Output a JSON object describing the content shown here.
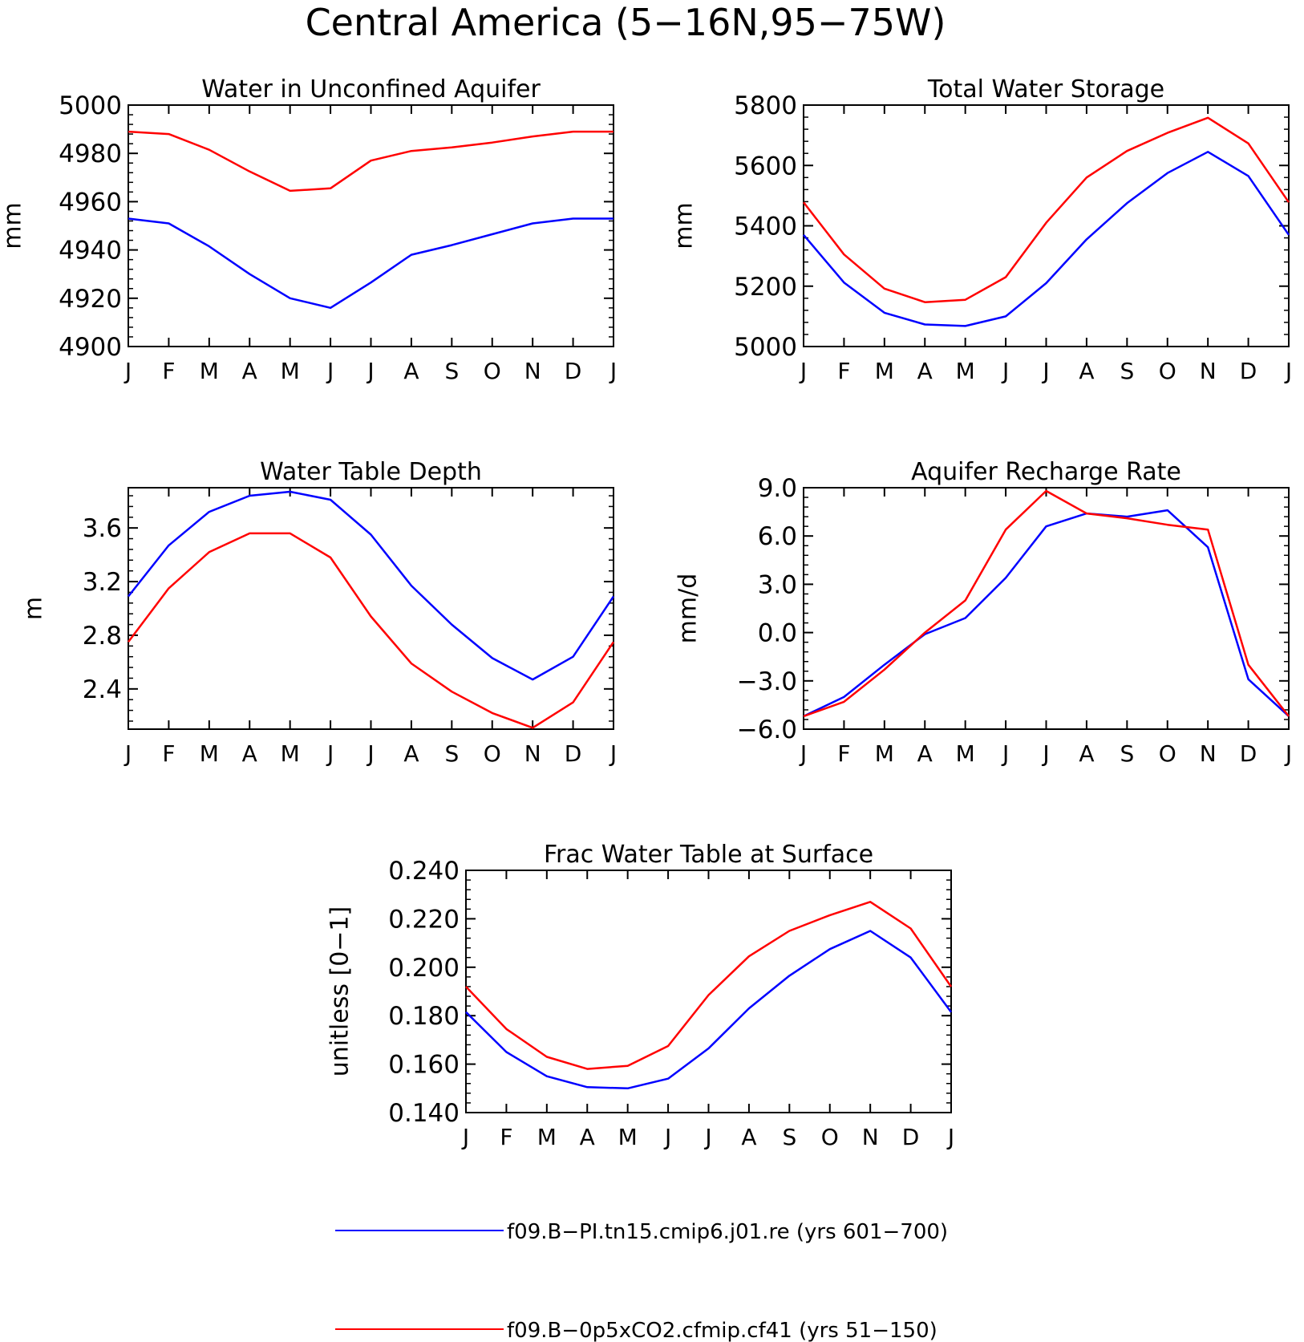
{
  "figure_title": "Central America (5−16N,95−75W)",
  "chart_data": [
    {
      "type": "line",
      "title": "Water in Unconfined Aquifer",
      "ylabel": "mm",
      "xlabel": "",
      "categories": [
        "J",
        "F",
        "M",
        "A",
        "M",
        "J",
        "J",
        "A",
        "S",
        "O",
        "N",
        "D",
        "J"
      ],
      "ylim": [
        4900,
        5000
      ],
      "yticks": [
        4900,
        4920,
        4940,
        4960,
        4980,
        5000
      ],
      "ytick_labels": [
        "4900",
        "4920",
        "4940",
        "4960",
        "4980",
        "5000"
      ],
      "series": [
        {
          "name": "f09.B−PI.tn15.cmip6.j01.re (yrs 601−700)",
          "color": "#0000ff",
          "values": [
            4953,
            4951,
            4941.5,
            4930,
            4920,
            4916,
            4926.5,
            4938,
            4942,
            4946.5,
            4951,
            4953,
            4953
          ]
        },
        {
          "name": "f09.B−0p5xCO2.cfmip.cf41 (yrs 51−150)",
          "color": "#ff0000",
          "values": [
            4989,
            4988,
            4981.5,
            4972.5,
            4964.5,
            4965.5,
            4977,
            4981,
            4982.5,
            4984.5,
            4987,
            4989,
            4989
          ]
        }
      ]
    },
    {
      "type": "line",
      "title": "Total Water Storage",
      "ylabel": "mm",
      "xlabel": "",
      "categories": [
        "J",
        "F",
        "M",
        "A",
        "M",
        "J",
        "J",
        "A",
        "S",
        "O",
        "N",
        "D",
        "J"
      ],
      "ylim": [
        5000,
        5800
      ],
      "yticks": [
        5000,
        5200,
        5400,
        5600,
        5800
      ],
      "ytick_labels": [
        "5000",
        "5200",
        "5400",
        "5600",
        "5800"
      ],
      "series": [
        {
          "name": "f09.B−PI.tn15.cmip6.j01.re (yrs 601−700)",
          "color": "#0000ff",
          "values": [
            5370,
            5212,
            5112,
            5073,
            5068,
            5100,
            5210,
            5355,
            5475,
            5575,
            5645,
            5565,
            5370
          ]
        },
        {
          "name": "f09.B−0p5xCO2.cfmip.cf41 (yrs 51−150)",
          "color": "#ff0000",
          "values": [
            5478,
            5305,
            5192,
            5147,
            5155,
            5230,
            5410,
            5560,
            5648,
            5708,
            5758,
            5673,
            5478
          ]
        }
      ]
    },
    {
      "type": "line",
      "title": "Water Table Depth",
      "ylabel": "m",
      "xlabel": "",
      "categories": [
        "J",
        "F",
        "M",
        "A",
        "M",
        "J",
        "J",
        "A",
        "S",
        "O",
        "N",
        "D",
        "J"
      ],
      "ylim": [
        2.1,
        3.9
      ],
      "yticks": [
        2.4,
        2.8,
        3.2,
        3.6
      ],
      "ytick_labels": [
        "2.4",
        "2.8",
        "3.2",
        "3.6"
      ],
      "series": [
        {
          "name": "f09.B−PI.tn15.cmip6.j01.re (yrs 601−700)",
          "color": "#0000ff",
          "values": [
            3.09,
            3.47,
            3.72,
            3.84,
            3.87,
            3.81,
            3.55,
            3.17,
            2.88,
            2.63,
            2.47,
            2.64,
            3.09
          ]
        },
        {
          "name": "f09.B−0p5xCO2.cfmip.cf41 (yrs 51−150)",
          "color": "#ff0000",
          "values": [
            2.75,
            3.15,
            3.42,
            3.56,
            3.56,
            3.38,
            2.94,
            2.59,
            2.38,
            2.22,
            2.11,
            2.3,
            2.75
          ]
        }
      ]
    },
    {
      "type": "line",
      "title": "Aquifer Recharge Rate",
      "ylabel": "mm/d",
      "xlabel": "",
      "categories": [
        "J",
        "F",
        "M",
        "A",
        "M",
        "J",
        "J",
        "A",
        "S",
        "O",
        "N",
        "D",
        "J"
      ],
      "ylim": [
        -6.0,
        9.0
      ],
      "yticks": [
        -6.0,
        -3.0,
        0.0,
        3.0,
        6.0,
        9.0
      ],
      "ytick_labels": [
        "−6.0",
        "−3.0",
        "0.0",
        "3.0",
        "6.0",
        "9.0"
      ],
      "series": [
        {
          "name": "f09.B−PI.tn15.cmip6.j01.re (yrs 601−700)",
          "color": "#0000ff",
          "values": [
            -5.2,
            -4.0,
            -2.0,
            -0.1,
            0.9,
            3.4,
            6.6,
            7.4,
            7.2,
            7.6,
            5.3,
            -2.9,
            -5.2
          ]
        },
        {
          "name": "f09.B−0p5xCO2.cfmip.cf41 (yrs 51−150)",
          "color": "#ff0000",
          "values": [
            -5.2,
            -4.3,
            -2.3,
            0.0,
            2.0,
            6.4,
            8.8,
            7.4,
            7.1,
            6.7,
            6.4,
            -2.0,
            -5.2
          ]
        }
      ]
    },
    {
      "type": "line",
      "title": "Frac Water Table at Surface",
      "ylabel": "unitless [0−1]",
      "xlabel": "",
      "categories": [
        "J",
        "F",
        "M",
        "A",
        "M",
        "J",
        "J",
        "A",
        "S",
        "O",
        "N",
        "D",
        "J"
      ],
      "ylim": [
        0.14,
        0.24
      ],
      "yticks": [
        0.14,
        0.16,
        0.18,
        0.2,
        0.22,
        0.24
      ],
      "ytick_labels": [
        "0.140",
        "0.160",
        "0.180",
        "0.200",
        "0.220",
        "0.240"
      ],
      "series": [
        {
          "name": "f09.B−PI.tn15.cmip6.j01.re (yrs 601−700)",
          "color": "#0000ff",
          "values": [
            0.1815,
            0.165,
            0.155,
            0.1505,
            0.15,
            0.154,
            0.1665,
            0.183,
            0.1965,
            0.2075,
            0.215,
            0.204,
            0.1815
          ]
        },
        {
          "name": "f09.B−0p5xCO2.cfmip.cf41 (yrs 51−150)",
          "color": "#ff0000",
          "values": [
            0.192,
            0.1745,
            0.163,
            0.158,
            0.1593,
            0.1675,
            0.1885,
            0.2045,
            0.215,
            0.2215,
            0.227,
            0.216,
            0.192
          ]
        }
      ]
    }
  ],
  "legend": [
    {
      "label": "f09.B−PI.tn15.cmip6.j01.re (yrs 601−700)",
      "color": "#0000ff"
    },
    {
      "label": "f09.B−0p5xCO2.cfmip.cf41 (yrs 51−150)",
      "color": "#ff0000"
    }
  ]
}
